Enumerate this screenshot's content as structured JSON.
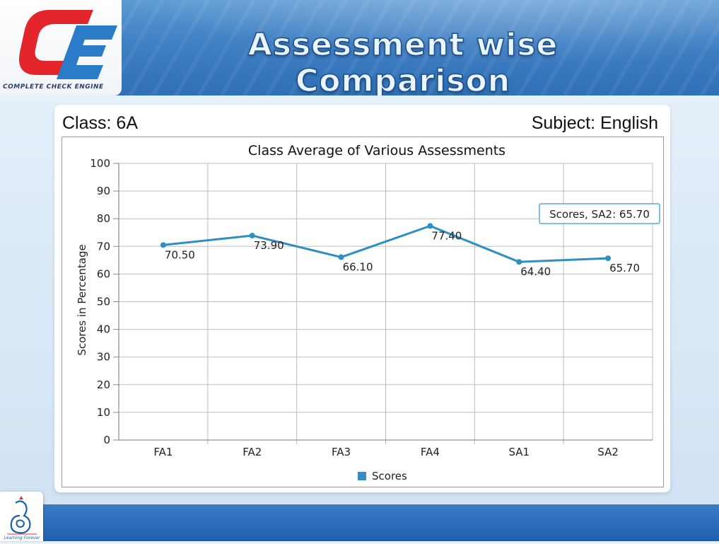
{
  "header": {
    "title": "Assessment wise Comparison",
    "logo_caption": "COMPLETE CHECK ENGINE"
  },
  "meta": {
    "class_label": "Class:",
    "class_value": "6A",
    "subject_label": "Subject:",
    "subject_value": "English"
  },
  "footer": {
    "logo_caption": "Learning Forever"
  },
  "colors": {
    "series": "#2f8fc4",
    "grid": "#bdbdbd",
    "logo_red": "#e3262b",
    "logo_blue": "#2b7cc8"
  },
  "chart_data": {
    "type": "line",
    "title": "Class Average of Various Assessments",
    "xlabel": "",
    "ylabel": "Scores in Percentage",
    "categories": [
      "FA1",
      "FA2",
      "FA3",
      "FA4",
      "SA1",
      "SA2"
    ],
    "series": [
      {
        "name": "Scores",
        "values": [
          70.5,
          73.9,
          66.1,
          77.4,
          64.4,
          65.7
        ],
        "labels": [
          "70.50",
          "73.90",
          "66.10",
          "77.40",
          "64.40",
          "65.70"
        ]
      }
    ],
    "ylim": [
      0,
      100
    ],
    "yticks": [
      0,
      10,
      20,
      30,
      40,
      50,
      60,
      70,
      80,
      90,
      100
    ],
    "grid": true,
    "legend": "bottom-center",
    "tooltip": "Scores, SA2: 65.70"
  }
}
